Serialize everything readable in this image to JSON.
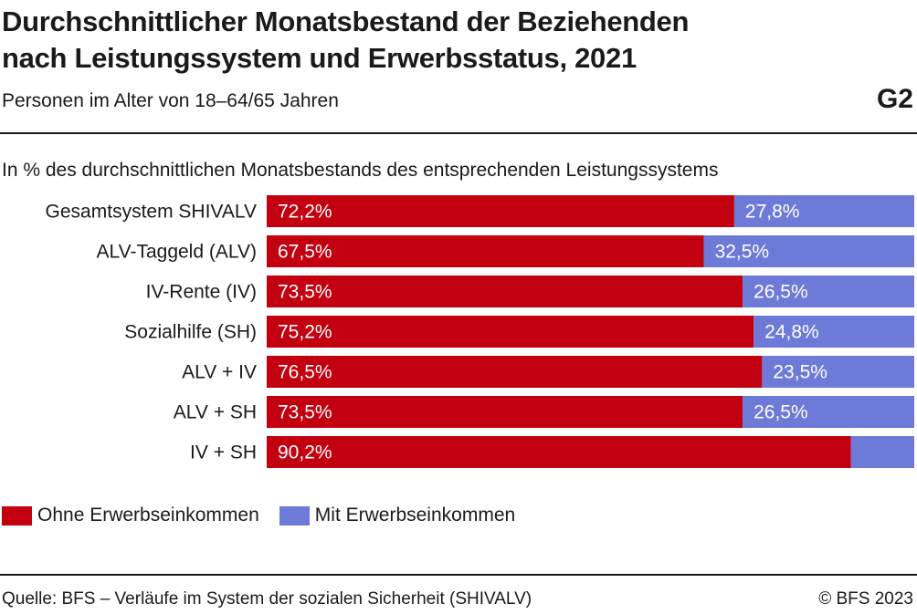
{
  "header": {
    "title_line1": "Durchschnittlicher Monatsbestand der Beziehenden",
    "title_line2": "nach Leistungssystem und Erwerbsstatus, 2021",
    "subtitle": "Personen im Alter von 18–64/65 Jahren",
    "code": "G2"
  },
  "unit_label": "In % des durchschnittlichen Monatsbestands des entsprechenden Leistungssystems",
  "colors": {
    "ohne": "#c3000f",
    "mit": "#6d7ad8"
  },
  "chart_data": {
    "type": "bar",
    "orientation": "horizontal",
    "stacked": true,
    "categories": [
      "Gesamtsystem SHIVALV",
      "ALV-Taggeld (ALV)",
      "IV-Rente (IV)",
      "Sozialhilfe (SH)",
      "ALV + IV",
      "ALV + SH",
      "IV + SH"
    ],
    "series": [
      {
        "name": "Ohne Erwerbseinkommen",
        "values": [
          72.2,
          67.5,
          73.5,
          75.2,
          76.5,
          73.5,
          90.2
        ],
        "labels": [
          "72,2%",
          "67,5%",
          "73,5%",
          "75,2%",
          "76,5%",
          "73,5%",
          "90,2%"
        ]
      },
      {
        "name": "Mit Erwerbseinkommen",
        "values": [
          27.8,
          32.5,
          26.5,
          24.8,
          23.5,
          26.5,
          9.8
        ],
        "labels": [
          "27,8%",
          "32,5%",
          "26,5%",
          "24,8%",
          "23,5%",
          "26,5%",
          ""
        ]
      }
    ],
    "xlim": [
      0,
      100
    ],
    "grid": false,
    "legend": "bottom-left"
  },
  "footer": {
    "source": "Quelle: BFS – Verläufe im System der sozialen Sicherheit (SHIVALV)",
    "copyright": "© BFS 2023"
  }
}
